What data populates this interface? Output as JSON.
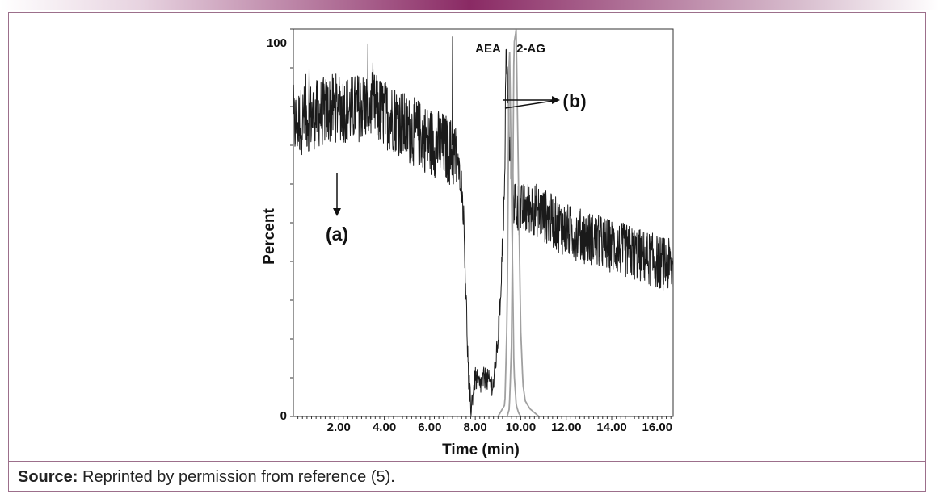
{
  "caption": {
    "label": "Source:",
    "text": " Reprinted by permission from reference (5)."
  },
  "chart_data": {
    "type": "line",
    "title": "",
    "xlabel": "Time (min)",
    "ylabel": "Percent",
    "xlim": [
      0,
      16.7
    ],
    "ylim": [
      0,
      100
    ],
    "x_ticks": [
      2,
      4,
      6,
      8,
      10,
      12,
      14,
      16
    ],
    "x_tick_labels": [
      "2.00",
      "4.00",
      "6.00",
      "8.00",
      "10.00",
      "12.00",
      "14.00",
      "16.00"
    ],
    "y_tick_labels": [
      "0",
      "100"
    ],
    "grid": false,
    "legend": "none",
    "colors": {
      "tic": "#1a1a1a",
      "peaks": "#a0a0a0"
    },
    "series": [
      {
        "x": [
          0,
          0.5,
          1,
          1.5,
          2,
          2.5,
          3,
          3.5,
          4,
          4.5,
          5,
          5.5,
          6,
          6.5,
          7,
          7.2,
          7.4,
          7.5,
          7.6,
          7.7,
          7.8,
          7.9,
          8.0,
          8.2,
          8.4,
          8.6,
          8.8,
          9.0,
          9.1,
          9.2,
          9.3,
          9.35,
          9.5,
          9.6,
          9.7,
          9.8,
          10,
          10.5,
          11,
          11.5,
          12,
          12.5,
          13,
          13.5,
          14,
          14.5,
          15,
          15.5,
          16,
          16.5,
          16.7
        ],
        "y": [
          75,
          77,
          78,
          79,
          80,
          79,
          80,
          80,
          78,
          77,
          74,
          73,
          71,
          70,
          68,
          66,
          60,
          50,
          30,
          10,
          2,
          6,
          10,
          8,
          10,
          9,
          8,
          20,
          30,
          45,
          60,
          98,
          70,
          62,
          56,
          54,
          53,
          54,
          52,
          50,
          48,
          47,
          46,
          45,
          44,
          43,
          42,
          41,
          40,
          39,
          38
        ]
      },
      {
        "name": "AEA",
        "x": [
          9.0,
          9.3,
          9.4,
          9.5,
          9.6,
          9.7,
          9.8,
          9.9,
          10.0,
          10.2,
          10.5,
          10.8,
          11.0,
          16.7
        ],
        "y": [
          0,
          3,
          25,
          100,
          55,
          12,
          3,
          1,
          0,
          0,
          0,
          0,
          0,
          0
        ]
      },
      {
        "name": "2-AG",
        "x": [
          9.0,
          9.4,
          9.5,
          9.6,
          9.7,
          9.8,
          9.9,
          10.0,
          10.1,
          10.2,
          10.4,
          10.6,
          10.8,
          11.0,
          16.7
        ],
        "y": [
          0,
          0,
          2,
          20,
          96,
          100,
          60,
          22,
          8,
          4,
          2,
          1,
          0,
          0,
          0
        ]
      }
    ],
    "annotations": [
      {
        "text": "AEA",
        "x": 9.4,
        "y": 100
      },
      {
        "text": "2-AG",
        "x": 10.0,
        "y": 100
      },
      {
        "text": "(a)",
        "x": 1.9,
        "y": 48
      },
      {
        "text": "(b)",
        "x": 12.0,
        "y": 84
      }
    ]
  }
}
